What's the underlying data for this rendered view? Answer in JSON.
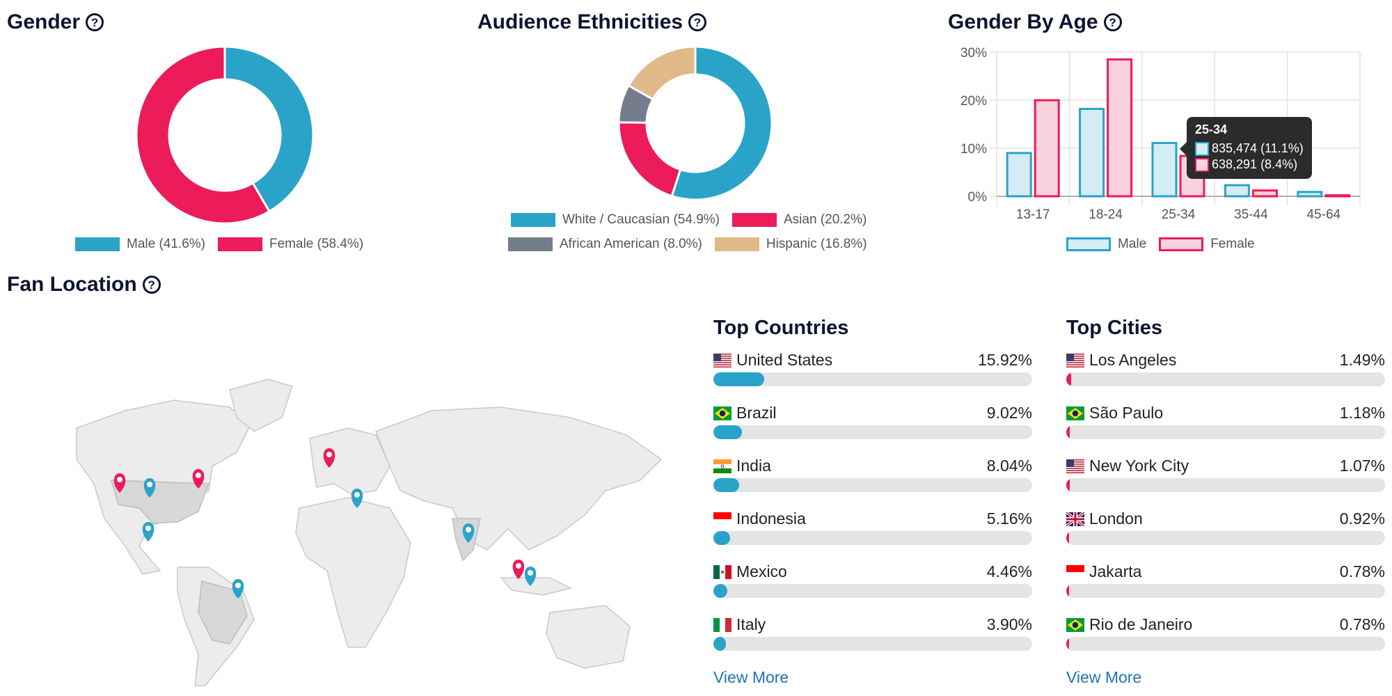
{
  "colors": {
    "blue": "#2aa3c9",
    "pink": "#ec1b5a",
    "slate": "#737d8c",
    "tan": "#dfb988",
    "dark": "#0b1330",
    "link": "#1f74b8"
  },
  "help_glyph": "?",
  "gender": {
    "title": "Gender",
    "legend": [
      "Male (41.6%)",
      "Female (58.4%)"
    ]
  },
  "ethnicities": {
    "title": "Audience Ethnicities",
    "legend": [
      "White / Caucasian (54.9%)",
      "Asian (20.2%)",
      "African American (8.0%)",
      "Hispanic (16.8%)"
    ]
  },
  "gender_by_age": {
    "title": "Gender By Age",
    "legend": [
      "Male",
      "Female"
    ],
    "tooltip": {
      "title": "25-34",
      "male": "835,474 (11.1%)",
      "female": "638,291 (8.4%)"
    }
  },
  "fan_location": {
    "title": "Fan Location"
  },
  "top_countries": {
    "title": "Top Countries",
    "items": [
      {
        "name": "United States",
        "pct_label": "15.92%",
        "value": 15.92,
        "flag": "us-flag"
      },
      {
        "name": "Brazil",
        "pct_label": "9.02%",
        "value": 9.02,
        "flag": "br-flag"
      },
      {
        "name": "India",
        "pct_label": "8.04%",
        "value": 8.04,
        "flag": "in-flag"
      },
      {
        "name": "Indonesia",
        "pct_label": "5.16%",
        "value": 5.16,
        "flag": "id-flag"
      },
      {
        "name": "Mexico",
        "pct_label": "4.46%",
        "value": 4.46,
        "flag": "mx-flag"
      },
      {
        "name": "Italy",
        "pct_label": "3.90%",
        "value": 3.9,
        "flag": "it-flag"
      }
    ],
    "scale_max": 100,
    "view_more": "View More"
  },
  "top_cities": {
    "title": "Top Cities",
    "items": [
      {
        "name": "Los Angeles",
        "pct_label": "1.49%",
        "value": 1.49,
        "flag": "us-flag"
      },
      {
        "name": "São Paulo",
        "pct_label": "1.18%",
        "value": 1.18,
        "flag": "br-flag"
      },
      {
        "name": "New York City",
        "pct_label": "1.07%",
        "value": 1.07,
        "flag": "us-flag"
      },
      {
        "name": "London",
        "pct_label": "0.92%",
        "value": 0.92,
        "flag": "gb-flag"
      },
      {
        "name": "Jakarta",
        "pct_label": "0.78%",
        "value": 0.78,
        "flag": "id-flag"
      },
      {
        "name": "Rio de Janeiro",
        "pct_label": "0.78%",
        "value": 0.78,
        "flag": "br-flag"
      }
    ],
    "scale_max": 100,
    "view_more": "View More"
  },
  "chart_data": [
    {
      "type": "pie",
      "title": "Gender",
      "categories": [
        "Male",
        "Female"
      ],
      "values": [
        41.6,
        58.4
      ],
      "colors": [
        "#2aa3c9",
        "#ec1b5a"
      ]
    },
    {
      "type": "pie",
      "title": "Audience Ethnicities",
      "categories": [
        "White / Caucasian",
        "Asian",
        "African American",
        "Hispanic"
      ],
      "values": [
        54.9,
        20.2,
        8.0,
        16.8
      ],
      "colors": [
        "#2aa3c9",
        "#ec1b5a",
        "#737d8c",
        "#dfb988"
      ]
    },
    {
      "type": "bar",
      "title": "Gender By Age",
      "categories": [
        "13-17",
        "18-24",
        "25-34",
        "35-44",
        "45-64"
      ],
      "series": [
        {
          "name": "Male",
          "values": [
            9.0,
            18.2,
            11.1,
            2.3,
            0.9
          ],
          "stroke": "#2aa3c9",
          "fill": "#d4edf4"
        },
        {
          "name": "Female",
          "values": [
            20.0,
            28.5,
            8.4,
            1.2,
            0.2
          ],
          "stroke": "#ec1b5a",
          "fill": "#f9d2de"
        }
      ],
      "yticks": [
        "0%",
        "10%",
        "20%",
        "30%"
      ],
      "ylim": [
        0,
        30
      ],
      "legend": "bottom"
    }
  ]
}
